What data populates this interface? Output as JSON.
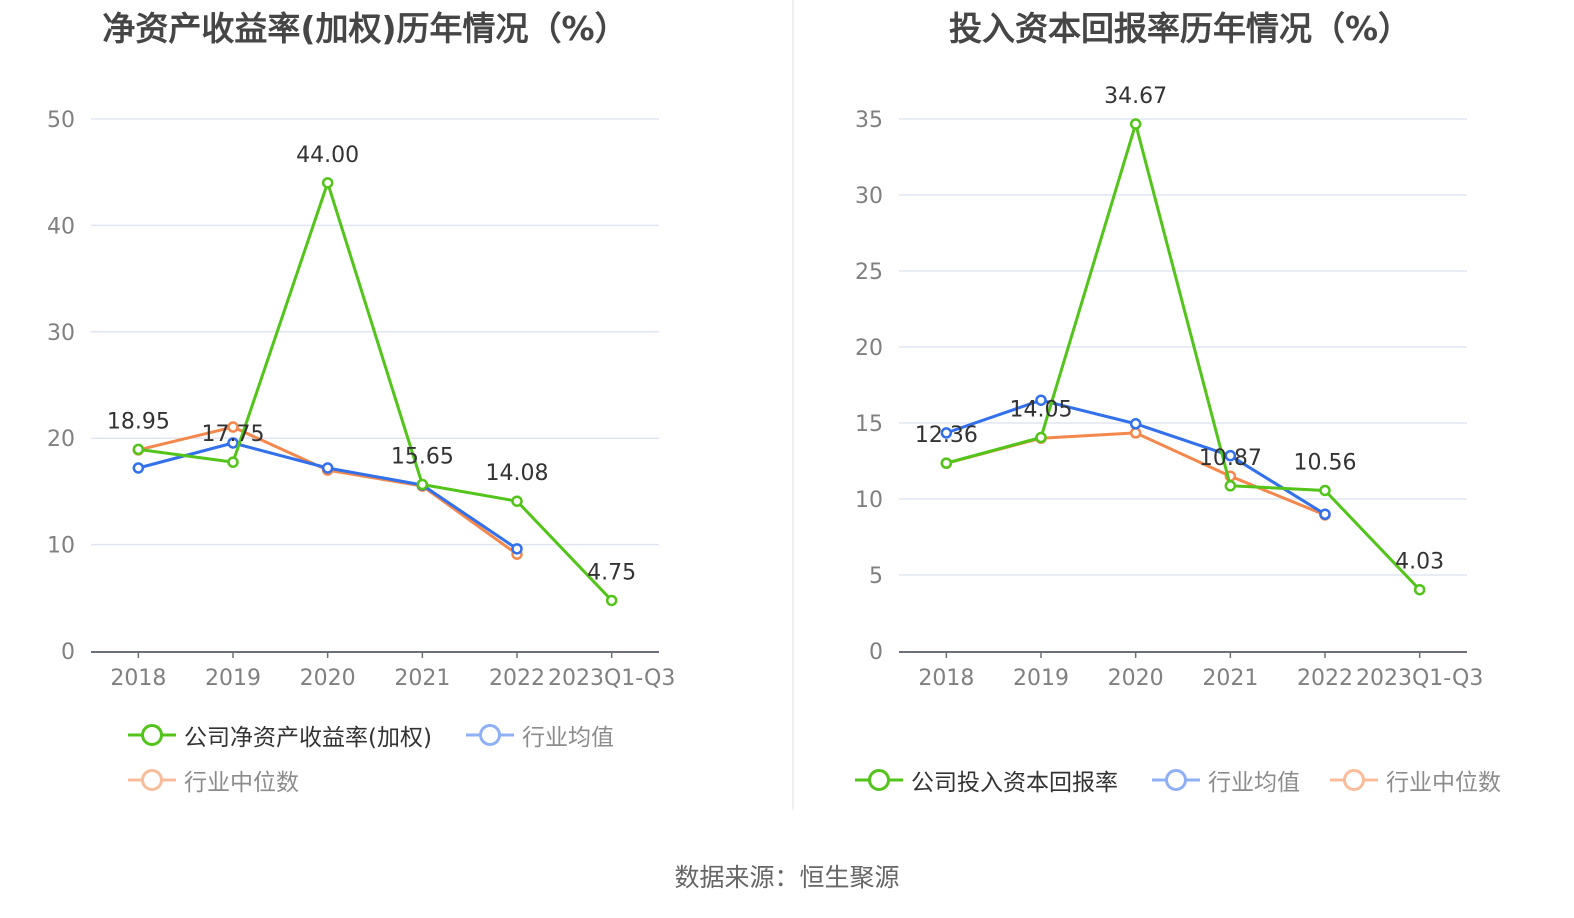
{
  "chart_data": [
    {
      "type": "line",
      "title": "净资产收益率(加权)历年情况（%）",
      "xlabel": "",
      "ylabel": "",
      "categories": [
        "2018",
        "2019",
        "2020",
        "2021",
        "2022",
        "2023Q1-Q3"
      ],
      "ylim": [
        0,
        50
      ],
      "yticks": [
        0,
        10,
        20,
        30,
        40,
        50
      ],
      "grid": true,
      "legend_position": "bottom",
      "series": [
        {
          "name": "公司净资产收益率(加权)",
          "color": "#52c41a",
          "active": true,
          "show_labels": true,
          "labels": [
            "18.95",
            "17.75",
            "44.00",
            "15.65",
            "14.08",
            "4.75"
          ],
          "values": [
            18.95,
            17.75,
            44.0,
            15.65,
            14.08,
            4.75
          ]
        },
        {
          "name": "行业均值",
          "color": "#3370eb",
          "active": false,
          "show_labels": false,
          "values": [
            17.2,
            19.55,
            17.2,
            15.6,
            9.6,
            null
          ]
        },
        {
          "name": "行业中位数",
          "color": "#f4874b",
          "active": false,
          "show_labels": false,
          "values": [
            18.9,
            21.05,
            17.0,
            15.5,
            9.1,
            null
          ]
        }
      ]
    },
    {
      "type": "line",
      "title": "投入资本回报率历年情况（%）",
      "xlabel": "",
      "ylabel": "",
      "categories": [
        "2018",
        "2019",
        "2020",
        "2021",
        "2022",
        "2023Q1-Q3"
      ],
      "ylim": [
        0,
        35
      ],
      "yticks": [
        0,
        5,
        10,
        15,
        20,
        25,
        30,
        35
      ],
      "grid": true,
      "legend_position": "bottom",
      "series": [
        {
          "name": "公司投入资本回报率",
          "color": "#52c41a",
          "active": true,
          "show_labels": true,
          "labels": [
            "12.36",
            "14.05",
            "34.67",
            "10.87",
            "10.56",
            "4.03"
          ],
          "values": [
            12.36,
            14.05,
            34.67,
            10.87,
            10.56,
            4.03
          ]
        },
        {
          "name": "行业均值",
          "color": "#3370eb",
          "active": false,
          "show_labels": false,
          "values": [
            14.35,
            16.5,
            14.95,
            12.85,
            9.0,
            null
          ]
        },
        {
          "name": "行业中位数",
          "color": "#f4874b",
          "active": false,
          "show_labels": false,
          "values": [
            12.35,
            14.0,
            14.35,
            11.5,
            8.95,
            null
          ]
        }
      ]
    }
  ],
  "footer": {
    "source": "数据来源：恒生聚源"
  }
}
